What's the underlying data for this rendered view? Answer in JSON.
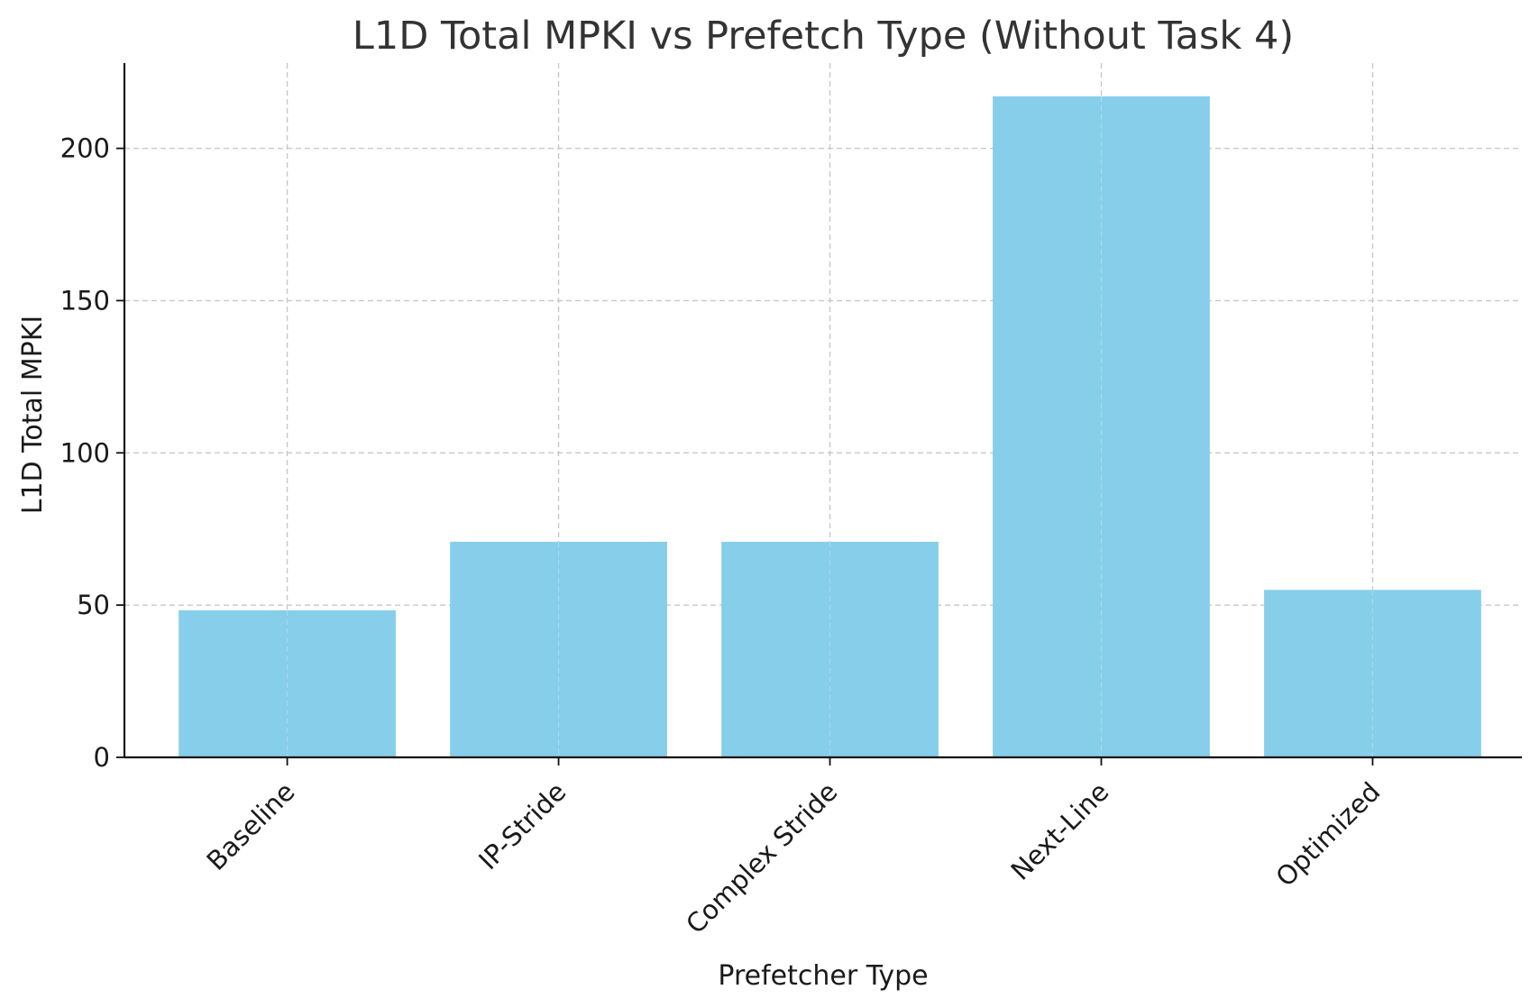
{
  "chart_data": {
    "type": "bar",
    "title": "L1D Total MPKI vs Prefetch Type (Without Task 4)",
    "xlabel": "Prefetcher Type",
    "ylabel": "L1D Total MPKI",
    "categories": [
      "Baseline",
      "IP-Stride",
      "Complex Stride",
      "Next-Line",
      "Optimized"
    ],
    "values": [
      48.3,
      70.8,
      70.8,
      217.1,
      55.0
    ],
    "ylim": [
      0,
      228
    ],
    "yticks": [
      0,
      50,
      100,
      150,
      200
    ],
    "bar_color": "#87ceeb",
    "grid": true,
    "legend": "none"
  }
}
